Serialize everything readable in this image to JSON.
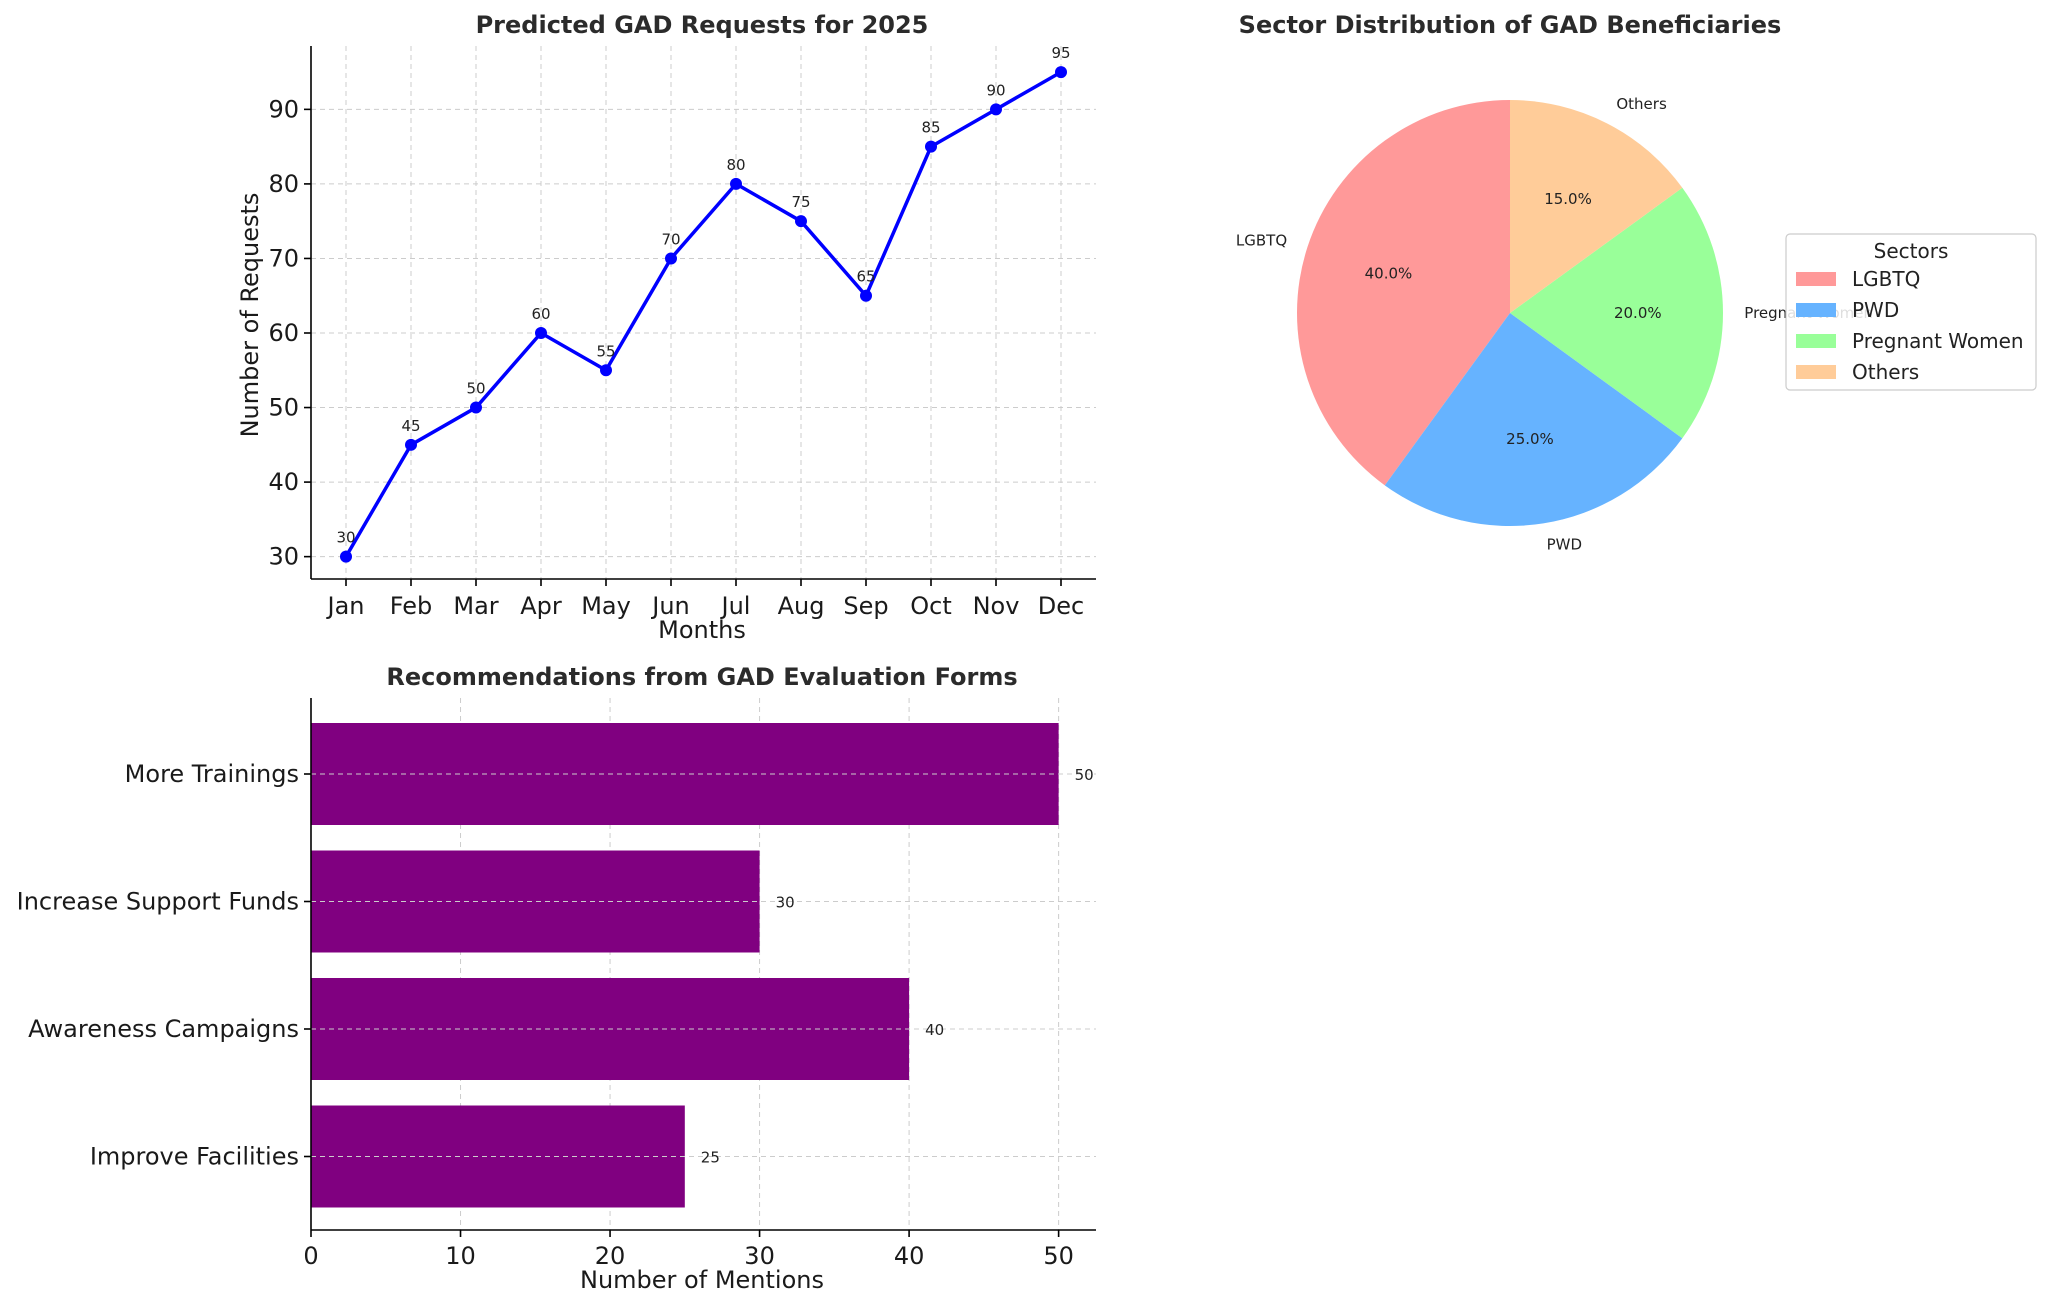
{
  "chart_data": [
    {
      "type": "line",
      "title": "Predicted GAD Requests for 2025",
      "xlabel": "Months",
      "ylabel": "Number of Requests",
      "categories": [
        "Jan",
        "Feb",
        "Mar",
        "Apr",
        "May",
        "Jun",
        "Jul",
        "Aug",
        "Sep",
        "Oct",
        "Nov",
        "Dec"
      ],
      "values": [
        30,
        45,
        50,
        60,
        55,
        70,
        80,
        75,
        65,
        85,
        90,
        95
      ],
      "ylim": [
        27,
        98.5
      ],
      "yticks": [
        30,
        40,
        50,
        60,
        70,
        80,
        90
      ],
      "grid": true,
      "color": "#0000ff"
    },
    {
      "type": "pie",
      "title": "Sector Distribution of GAD Beneficiaries",
      "labels": [
        "LGBTQ",
        "PWD",
        "Pregnant Women",
        "Others"
      ],
      "values": [
        40,
        25,
        20,
        15
      ],
      "pct_labels": [
        "40.0%",
        "25.0%",
        "20.0%",
        "15.0%"
      ],
      "colors": [
        "#ff9999",
        "#66b3ff",
        "#99ff99",
        "#ffcc99"
      ],
      "legend_title": "Sectors",
      "legend_position": "center-right"
    },
    {
      "type": "bar",
      "orientation": "horizontal",
      "title": "Recommendations from GAD Evaluation Forms",
      "xlabel": "Number of Mentions",
      "categories": [
        "More Trainings",
        "Increase Support Funds",
        "Awareness Campaigns",
        "Improve Facilities"
      ],
      "values": [
        50,
        30,
        40,
        25
      ],
      "xlim": [
        0,
        52.5
      ],
      "xticks": [
        0,
        10,
        20,
        30,
        40,
        50
      ],
      "grid": true,
      "color": "#800080"
    }
  ]
}
